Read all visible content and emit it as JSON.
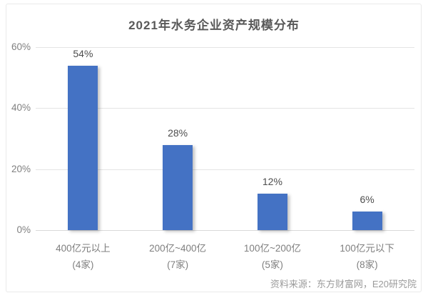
{
  "chart_data": {
    "type": "bar",
    "title": "2021年水务企业资产规模分布",
    "categories": [
      "400亿元以上",
      "200亿~400亿",
      "100亿~200亿",
      "100亿元以下"
    ],
    "category_counts": [
      "(4家)",
      "(7家)",
      "(5家)",
      "(8家)"
    ],
    "values": [
      54,
      28,
      12,
      6
    ],
    "value_labels": [
      "54%",
      "28%",
      "12%",
      "6%"
    ],
    "y_tick_values": [
      60,
      40,
      20,
      0
    ],
    "y_tick_labels": [
      "60%",
      "40%",
      "20%",
      "0%"
    ],
    "ylim": [
      0,
      60
    ],
    "grid": true,
    "legend": false,
    "bar_color": "#4472c4",
    "source_note": "资料来源：东方财富网，E20研究院"
  }
}
